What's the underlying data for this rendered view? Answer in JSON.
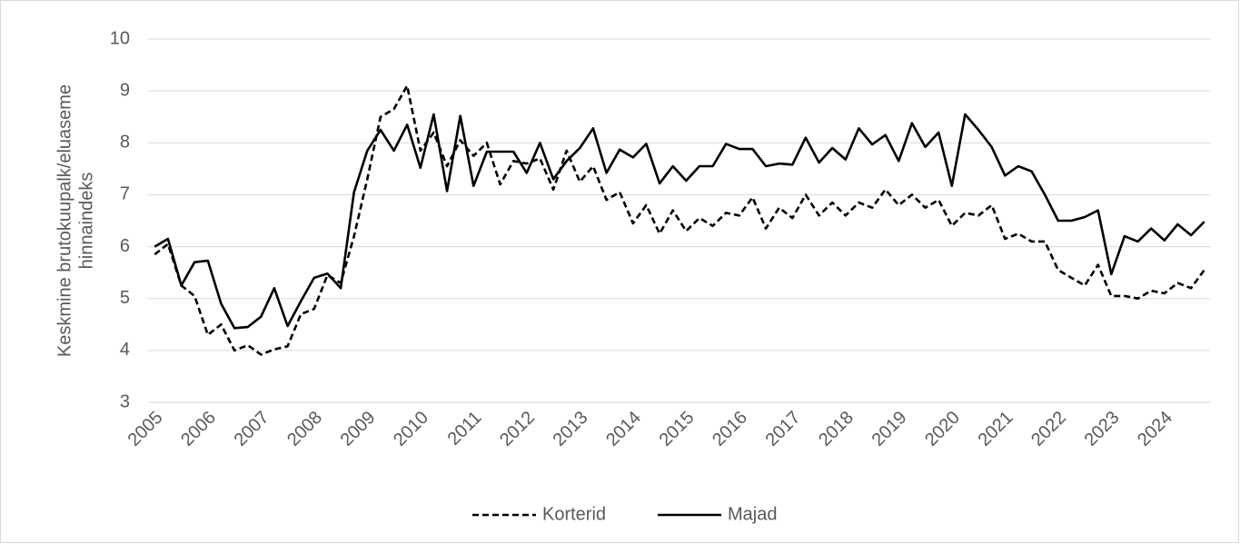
{
  "chart_data": {
    "type": "line",
    "ylabel": [
      "Keskmine brutokuupalk/eluaseme",
      "hinnaindeks"
    ],
    "categories": [
      "2005",
      null,
      null,
      null,
      "2006",
      null,
      null,
      null,
      "2007",
      null,
      null,
      null,
      "2008",
      null,
      null,
      null,
      "2009",
      null,
      null,
      null,
      "2010",
      null,
      null,
      null,
      "2011",
      null,
      null,
      null,
      "2012",
      null,
      null,
      null,
      "2013",
      null,
      null,
      null,
      "2014",
      null,
      null,
      null,
      "2015",
      null,
      null,
      null,
      "2016",
      null,
      null,
      null,
      "2017",
      null,
      null,
      null,
      "2018",
      null,
      null,
      null,
      "2019",
      null,
      null,
      null,
      "2020",
      null,
      null,
      null,
      "2021",
      null,
      null,
      null,
      "2022",
      null,
      null,
      null,
      "2023",
      null,
      null,
      null,
      "2024",
      null,
      null,
      null
    ],
    "series": [
      {
        "name": "Korterid",
        "color": "#000000",
        "dash": true,
        "values": [
          5.85,
          6.05,
          5.25,
          5.05,
          4.3,
          4.5,
          4.0,
          4.1,
          3.92,
          4.02,
          4.08,
          4.7,
          4.8,
          5.45,
          5.3,
          6.2,
          7.3,
          8.5,
          8.65,
          9.1,
          7.85,
          8.2,
          7.55,
          8.05,
          7.75,
          8.0,
          7.2,
          7.65,
          7.6,
          7.7,
          7.1,
          7.85,
          7.25,
          7.55,
          6.9,
          7.05,
          6.45,
          6.8,
          6.25,
          6.7,
          6.3,
          6.55,
          6.4,
          6.65,
          6.6,
          6.95,
          6.35,
          6.75,
          6.55,
          7.0,
          6.6,
          6.85,
          6.6,
          6.85,
          6.75,
          7.1,
          6.8,
          7.0,
          6.75,
          6.9,
          6.4,
          6.65,
          6.6,
          6.8,
          6.15,
          6.25,
          6.1,
          6.1,
          5.55,
          5.4,
          5.25,
          5.65,
          5.05,
          5.05,
          5.0,
          5.15,
          5.1,
          5.3,
          5.2,
          5.55
        ]
      },
      {
        "name": "Majad",
        "color": "#000000",
        "dash": false,
        "values": [
          6.0,
          6.15,
          5.25,
          5.7,
          5.73,
          4.9,
          4.43,
          4.45,
          4.65,
          5.2,
          4.47,
          4.95,
          5.4,
          5.48,
          5.2,
          7.05,
          7.85,
          8.25,
          7.85,
          8.35,
          7.52,
          8.55,
          7.07,
          8.52,
          7.17,
          7.83,
          7.83,
          7.83,
          7.42,
          8.0,
          7.3,
          7.65,
          7.9,
          8.28,
          7.42,
          7.87,
          7.72,
          7.98,
          7.22,
          7.55,
          7.27,
          7.55,
          7.55,
          7.98,
          7.88,
          7.88,
          7.55,
          7.6,
          7.58,
          8.1,
          7.62,
          7.9,
          7.68,
          8.28,
          7.97,
          8.15,
          7.65,
          8.38,
          7.92,
          8.2,
          7.17,
          8.55,
          8.25,
          7.92,
          7.37,
          7.55,
          7.45,
          7.0,
          6.5,
          6.5,
          6.57,
          6.7,
          5.47,
          6.2,
          6.1,
          6.35,
          6.12,
          6.43,
          6.22,
          6.48
        ]
      }
    ],
    "ylim": [
      3,
      10
    ],
    "yticks": [
      3,
      4,
      5,
      6,
      7,
      8,
      9,
      10
    ],
    "grid": true,
    "legend": "bottom"
  }
}
